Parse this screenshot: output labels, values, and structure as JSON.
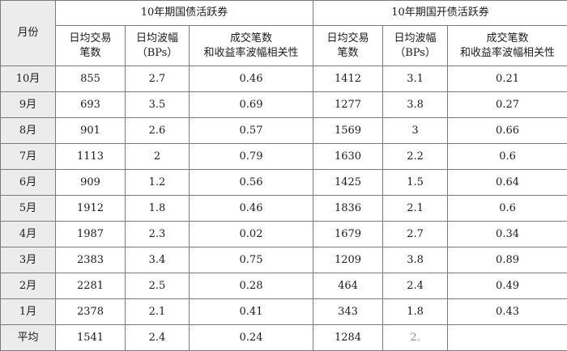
{
  "table": {
    "month_header": "月份",
    "groups": [
      "10年期国债活跃券",
      "10年期国开债活跃券"
    ],
    "subheaders": [
      [
        "日均交易",
        "笔数"
      ],
      [
        "日均波幅",
        "（BPs）"
      ],
      [
        "成交笔数",
        "和收益率波幅相关性"
      ],
      [
        "日均交易",
        "笔数"
      ],
      [
        "日均波幅",
        "（BPs）"
      ],
      [
        "成交笔数",
        "和收益率波幅相关性"
      ]
    ],
    "rows": [
      {
        "month": "10月",
        "cells": [
          "855",
          "2.7",
          "0.46",
          "1412",
          "3.1",
          "0.21"
        ]
      },
      {
        "month": "9月",
        "cells": [
          "693",
          "3.5",
          "0.69",
          "1277",
          "3.8",
          "0.27"
        ]
      },
      {
        "month": "8月",
        "cells": [
          "901",
          "2.6",
          "0.57",
          "1569",
          "3",
          "0.66"
        ]
      },
      {
        "month": "7月",
        "cells": [
          "1113",
          "2",
          "0.79",
          "1630",
          "2.2",
          "0.6"
        ]
      },
      {
        "month": "6月",
        "cells": [
          "909",
          "1.2",
          "0.56",
          "1425",
          "1.5",
          "0.64"
        ]
      },
      {
        "month": "5月",
        "cells": [
          "1912",
          "1.8",
          "0.46",
          "1836",
          "2.1",
          "0.6"
        ]
      },
      {
        "month": "4月",
        "cells": [
          "1987",
          "2.3",
          "0.02",
          "1679",
          "2.7",
          "0.34"
        ]
      },
      {
        "month": "3月",
        "cells": [
          "2383",
          "3.4",
          "0.75",
          "1209",
          "3.8",
          "0.89"
        ]
      },
      {
        "month": "2月",
        "cells": [
          "2281",
          "2.5",
          "0.28",
          "464",
          "2.4",
          "0.49"
        ]
      },
      {
        "month": "1月",
        "cells": [
          "2378",
          "2.1",
          "0.41",
          "343",
          "1.8",
          "0.43"
        ]
      },
      {
        "month": "平均",
        "cells": [
          "1541",
          "2.4",
          "0.24",
          "1284",
          "2.",
          ""
        ]
      }
    ]
  }
}
